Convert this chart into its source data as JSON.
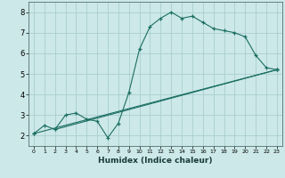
{
  "xlabel": "Humidex (Indice chaleur)",
  "bg_color": "#cce8e8",
  "grid_color": "#aacece",
  "line_color": "#1a6e62",
  "ylim": [
    1.5,
    8.5
  ],
  "xlim": [
    -0.5,
    23.5
  ],
  "yticks": [
    2,
    3,
    4,
    5,
    6,
    7,
    8
  ],
  "xticks": [
    0,
    1,
    2,
    3,
    4,
    5,
    6,
    7,
    8,
    9,
    10,
    11,
    12,
    13,
    14,
    15,
    16,
    17,
    18,
    19,
    20,
    21,
    22,
    23
  ],
  "line1_x": [
    0,
    1,
    2,
    3,
    4,
    5,
    6,
    7,
    8,
    9,
    10,
    11,
    12,
    13,
    14,
    15,
    16,
    17,
    18,
    19,
    20,
    21,
    22,
    23
  ],
  "line1_y": [
    2.1,
    2.5,
    2.3,
    3.0,
    3.1,
    2.8,
    2.7,
    1.9,
    2.6,
    4.1,
    6.2,
    7.3,
    7.7,
    8.0,
    7.7,
    7.8,
    7.5,
    7.2,
    7.1,
    7.0,
    6.8,
    5.9,
    5.3,
    5.2
  ],
  "line2_x": [
    0,
    23
  ],
  "line2_y": [
    2.1,
    5.2
  ],
  "line3_x": [
    2,
    23
  ],
  "line3_y": [
    2.3,
    5.2
  ]
}
